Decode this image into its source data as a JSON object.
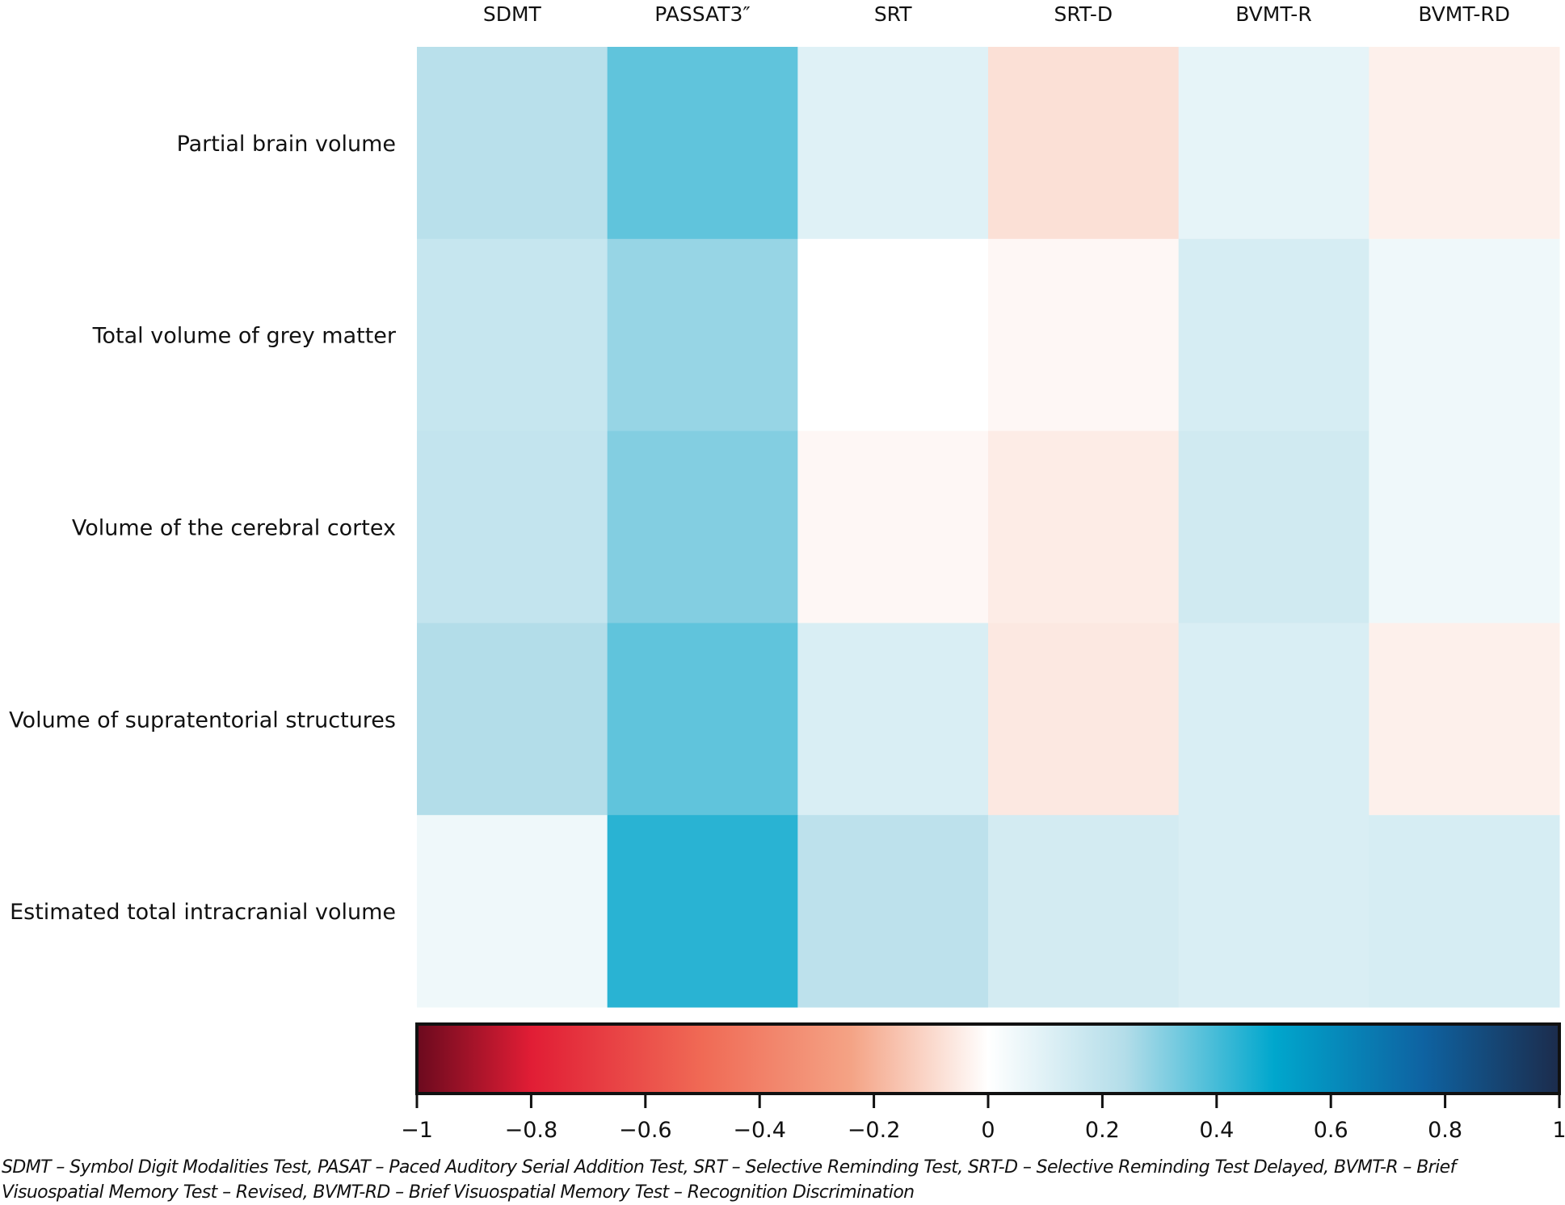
{
  "chart_data": {
    "type": "heatmap",
    "title": "",
    "columns": [
      "SDMT",
      "PASSAT3″",
      "SRT",
      "SRT-D",
      "BVMT-R",
      "BVMT-RD"
    ],
    "rows": [
      "Partial brain volume",
      "Total volume of grey matter",
      "Volume of the cerebral cortex",
      "Volume of supratentorial structures",
      "Estimated total intracranial volume"
    ],
    "values": [
      [
        0.22,
        0.36,
        0.1,
        -0.08,
        0.08,
        -0.04
      ],
      [
        0.18,
        0.28,
        0.0,
        -0.02,
        0.13,
        0.05
      ],
      [
        0.19,
        0.31,
        -0.02,
        -0.05,
        0.15,
        0.05
      ],
      [
        0.24,
        0.36,
        0.12,
        -0.06,
        0.12,
        -0.04
      ],
      [
        0.05,
        0.44,
        0.21,
        0.14,
        0.12,
        0.13
      ]
    ],
    "colorbar": {
      "range": [
        -1,
        1
      ],
      "ticks": [
        -1,
        -0.8,
        -0.6,
        -0.4,
        -0.2,
        0,
        0.2,
        0.4,
        0.6,
        0.8,
        1
      ],
      "tick_labels": [
        "−1",
        "−0.8",
        "−0.6",
        "−0.4",
        "−0.2",
        "0",
        "0.2",
        "0.4",
        "0.6",
        "0.8",
        "1"
      ],
      "placement": "bottom",
      "colors": {
        "neg_end": "#67001f",
        "neg_mid": "#e8283a",
        "neg_light": "#f4a582",
        "zero": "#ffffff",
        "pos_light": "#92c5de",
        "pos_mid": "#00a6ca",
        "pos_dark": "#0c5d9b",
        "pos_end": "#1b2a4a"
      }
    }
  },
  "footnote": {
    "line1": "SDMT – Symbol Digit Modalities Test, PASAT – Paced Auditory Serial Addition Test, SRT – Selective Reminding Test, SRT-D – Selective Reminding Test Delayed, BVMT-R – Brief",
    "line2": "Visuospatial Memory Test – Revised, BVMT-RD – Brief Visuospatial Memory Test – Recognition Discrimination"
  }
}
